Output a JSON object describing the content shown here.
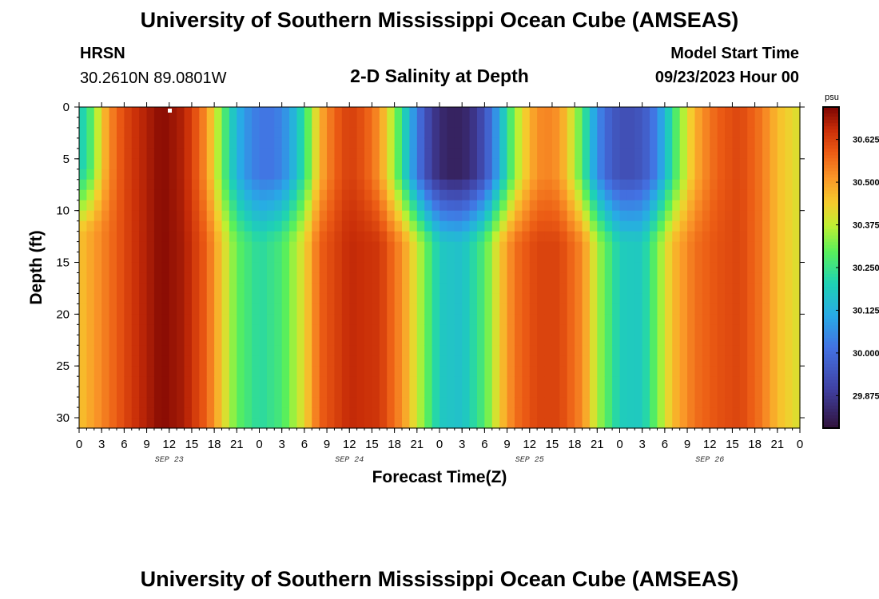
{
  "header": {
    "title": "University of Southern Mississippi Ocean Cube (AMSEAS)",
    "station_name": "HRSN",
    "station_coords": "30.2610N  89.0801W",
    "chart_heading": "2-D Salinity at Depth",
    "model_start_label": "Model Start Time",
    "model_start_value": "09/23/2023 Hour 00"
  },
  "footer": {
    "title": "University of Southern Mississippi Ocean Cube (AMSEAS)"
  },
  "chart_data": {
    "type": "heatmap",
    "title": "2-D Salinity at Depth",
    "xlabel": "Forecast Time(Z)",
    "ylabel": "Depth (ft)",
    "x_range_hours": [
      0,
      96
    ],
    "y_range_ft": [
      0,
      31
    ],
    "x_tick_labels": [
      "0",
      "3",
      "6",
      "9",
      "12",
      "15",
      "18",
      "21",
      "0",
      "3",
      "6",
      "9",
      "12",
      "15",
      "18",
      "21",
      "0",
      "3",
      "6",
      "9",
      "12",
      "15",
      "18",
      "21",
      "0",
      "3",
      "6",
      "9",
      "12",
      "15",
      "18",
      "21",
      "0"
    ],
    "y_tick_values": [
      0,
      5,
      10,
      15,
      20,
      25,
      30
    ],
    "y_tick_labels": [
      "0",
      "5",
      "10",
      "15",
      "20",
      "25",
      "30"
    ],
    "date_labels": [
      {
        "label": "SEP 23",
        "hour": 12
      },
      {
        "label": "SEP 24",
        "hour": 36
      },
      {
        "label": "SEP 25",
        "hour": 60
      },
      {
        "label": "SEP 26",
        "hour": 84
      }
    ],
    "colorbar": {
      "unit": "psu",
      "vmin": 29.78,
      "vmax": 30.72,
      "tick_values": [
        29.875,
        30.0,
        30.125,
        30.25,
        30.375,
        30.5,
        30.625
      ],
      "tick_labels": [
        "29.875",
        "30.000",
        "30.125",
        "30.250",
        "30.375",
        "30.500",
        "30.625"
      ]
    },
    "bottom_profile_psu": [
      {
        "hour": 0,
        "value": 30.45
      },
      {
        "hour": 4,
        "value": 30.56
      },
      {
        "hour": 7,
        "value": 30.64
      },
      {
        "hour": 11,
        "value": 30.71
      },
      {
        "hour": 14,
        "value": 30.68
      },
      {
        "hour": 17,
        "value": 30.58
      },
      {
        "hour": 19,
        "value": 30.44
      },
      {
        "hour": 21,
        "value": 30.3
      },
      {
        "hour": 24,
        "value": 30.22
      },
      {
        "hour": 27,
        "value": 30.27
      },
      {
        "hour": 30,
        "value": 30.42
      },
      {
        "hour": 32,
        "value": 30.58
      },
      {
        "hour": 36,
        "value": 30.66
      },
      {
        "hour": 40,
        "value": 30.64
      },
      {
        "hour": 43,
        "value": 30.52
      },
      {
        "hour": 46,
        "value": 30.32
      },
      {
        "hour": 48,
        "value": 30.18
      },
      {
        "hour": 51,
        "value": 30.16
      },
      {
        "hour": 54,
        "value": 30.28
      },
      {
        "hour": 56,
        "value": 30.44
      },
      {
        "hour": 58,
        "value": 30.56
      },
      {
        "hour": 61,
        "value": 30.62
      },
      {
        "hour": 64,
        "value": 30.62
      },
      {
        "hour": 67,
        "value": 30.53
      },
      {
        "hour": 69,
        "value": 30.36
      },
      {
        "hour": 72,
        "value": 30.19
      },
      {
        "hour": 75,
        "value": 30.18
      },
      {
        "hour": 77,
        "value": 30.32
      },
      {
        "hour": 79,
        "value": 30.46
      },
      {
        "hour": 82,
        "value": 30.56
      },
      {
        "hour": 85,
        "value": 30.6
      },
      {
        "hour": 88,
        "value": 30.62
      },
      {
        "hour": 91,
        "value": 30.55
      },
      {
        "hour": 93,
        "value": 30.46
      },
      {
        "hour": 96,
        "value": 30.4
      }
    ],
    "surface_fresh_lenses": [
      {
        "center_hour": 0,
        "half_width_hours": 3,
        "depth_ft": 10,
        "min_psu": 30.2
      },
      {
        "center_hour": 25,
        "half_width_hours": 6,
        "depth_ft": 11,
        "min_psu": 30.02
      },
      {
        "center_hour": 50,
        "half_width_hours": 8,
        "depth_ft": 11,
        "min_psu": 29.82
      },
      {
        "center_hour": 73,
        "half_width_hours": 7,
        "depth_ft": 11,
        "min_psu": 29.93
      }
    ]
  }
}
